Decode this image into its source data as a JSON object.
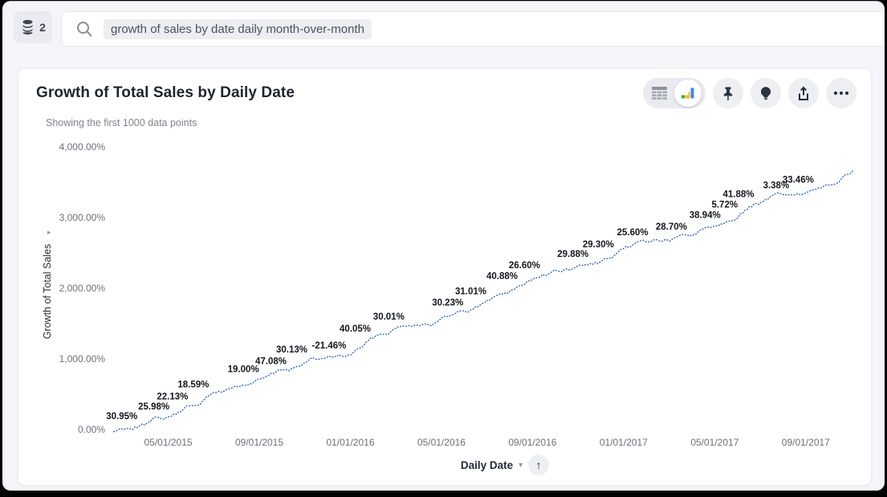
{
  "topbar": {
    "source_count": "2",
    "search_query": "growth of sales by date daily month-over-month",
    "icons": [
      "database-icon",
      "search-icon"
    ]
  },
  "card": {
    "title": "Growth of Total Sales by Daily Date",
    "subtitle": "Showing the first 1000 data points",
    "toolbar_icons": [
      "table-view-icon",
      "chart-view-icon",
      "pin-icon",
      "insights-icon",
      "share-icon",
      "more-icon"
    ],
    "view_toggle_selected": "chart"
  },
  "chart_data": {
    "type": "line",
    "title": "Growth of Total Sales by Daily Date",
    "ylabel": "Growth of Total Sales",
    "xlabel": "Daily Date",
    "ylim": [
      0,
      4000
    ],
    "y_ticks": [
      "0.00%",
      "1,000.00%",
      "2,000.00%",
      "3,000.00%",
      "4,000.00%"
    ],
    "y_tick_values": [
      0,
      1000,
      2000,
      3000,
      4000
    ],
    "x_ticks": [
      "05/01/2015",
      "09/01/2015",
      "01/01/2016",
      "05/01/2016",
      "09/01/2016",
      "01/01/2017",
      "05/01/2017",
      "09/01/2017"
    ],
    "grid": false,
    "legend": false,
    "line_color": "#3060cf",
    "label_color": "#13161d",
    "line_style": "dotted",
    "start": {
      "x": 0.004,
      "y": -30
    },
    "end": {
      "x": 0.996,
      "y": 3680
    },
    "points": [
      {
        "x": 0.039,
        "y": 56,
        "label": "30.95%"
      },
      {
        "x": 0.082,
        "y": 191,
        "label": "25.98%"
      },
      {
        "x": 0.107,
        "y": 338,
        "label": "22.13%"
      },
      {
        "x": 0.135,
        "y": 507,
        "label": "18.59%"
      },
      {
        "x": 0.202,
        "y": 721,
        "label": "19.00%"
      },
      {
        "x": 0.239,
        "y": 833,
        "label": "47.08%"
      },
      {
        "x": 0.267,
        "y": 1002,
        "label": "30.13%"
      },
      {
        "x": 0.319,
        "y": 1058,
        "label": "-21.46%"
      },
      {
        "x": 0.352,
        "y": 1295,
        "label": "40.05%"
      },
      {
        "x": 0.397,
        "y": 1464,
        "label": "30.01%"
      },
      {
        "x": 0.476,
        "y": 1667,
        "label": "30.23%"
      },
      {
        "x": 0.507,
        "y": 1824,
        "label": "31.01%"
      },
      {
        "x": 0.549,
        "y": 2038,
        "label": "40.88%"
      },
      {
        "x": 0.579,
        "y": 2196,
        "label": "26.60%"
      },
      {
        "x": 0.644,
        "y": 2354,
        "label": "29.88%"
      },
      {
        "x": 0.678,
        "y": 2489,
        "label": "29.30%"
      },
      {
        "x": 0.724,
        "y": 2658,
        "label": "25.60%"
      },
      {
        "x": 0.776,
        "y": 2737,
        "label": "28.70%"
      },
      {
        "x": 0.821,
        "y": 2906,
        "label": "38.94%"
      },
      {
        "x": 0.844,
        "y": 3052,
        "label": "5.72%"
      },
      {
        "x": 0.866,
        "y": 3199,
        "label": "41.88%"
      },
      {
        "x": 0.913,
        "y": 3323,
        "label": "3.38%"
      },
      {
        "x": 0.946,
        "y": 3401,
        "label": "33.46%"
      }
    ],
    "y_axis_caret": "▸",
    "axis_control": {
      "label": "Daily Date",
      "caret": "▾",
      "swap_glyph": "↑"
    }
  }
}
